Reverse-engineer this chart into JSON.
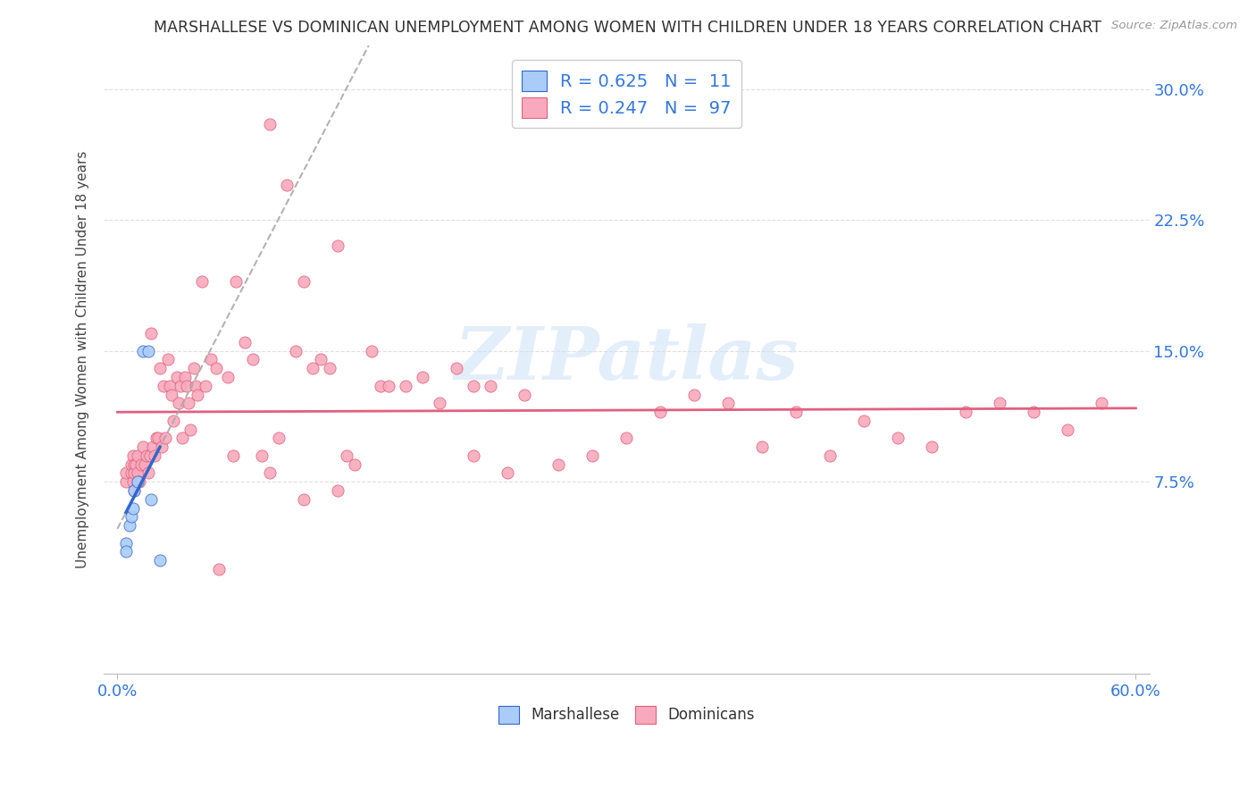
{
  "title": "MARSHALLESE VS DOMINICAN UNEMPLOYMENT AMONG WOMEN WITH CHILDREN UNDER 18 YEARS CORRELATION CHART",
  "source": "Source: ZipAtlas.com",
  "ylabel": "Unemployment Among Women with Children Under 18 years",
  "background_color": "#ffffff",
  "grid_color": "#e0e0e0",
  "marshallese_color": "#aaccf8",
  "dominican_color": "#f8aabc",
  "marshallese_line_color": "#3366cc",
  "dominican_line_color": "#e06080",
  "legend_color": "#3377dd",
  "marshallese_R": 0.625,
  "marshallese_N": 11,
  "dominican_R": 0.247,
  "dominican_N": 97,
  "xlim": [
    -0.008,
    0.608
  ],
  "ylim": [
    -0.035,
    0.325
  ],
  "ytick_positions": [
    0.075,
    0.15,
    0.225,
    0.3
  ],
  "ytick_labels": [
    "7.5%",
    "15.0%",
    "22.5%",
    "30.0%"
  ],
  "marshallese_x": [
    0.005,
    0.005,
    0.007,
    0.008,
    0.009,
    0.01,
    0.012,
    0.015,
    0.018,
    0.02,
    0.025
  ],
  "marshallese_y": [
    0.04,
    0.035,
    0.05,
    0.055,
    0.06,
    0.07,
    0.075,
    0.15,
    0.15,
    0.065,
    0.03
  ],
  "dominican_x": [
    0.005,
    0.005,
    0.008,
    0.008,
    0.009,
    0.009,
    0.01,
    0.01,
    0.01,
    0.011,
    0.012,
    0.012,
    0.013,
    0.014,
    0.015,
    0.016,
    0.017,
    0.018,
    0.019,
    0.02,
    0.021,
    0.022,
    0.023,
    0.024,
    0.025,
    0.026,
    0.027,
    0.028,
    0.03,
    0.031,
    0.032,
    0.033,
    0.035,
    0.036,
    0.037,
    0.038,
    0.04,
    0.041,
    0.042,
    0.043,
    0.045,
    0.046,
    0.047,
    0.05,
    0.052,
    0.055,
    0.058,
    0.06,
    0.065,
    0.068,
    0.07,
    0.075,
    0.08,
    0.085,
    0.09,
    0.095,
    0.1,
    0.105,
    0.11,
    0.115,
    0.12,
    0.125,
    0.13,
    0.135,
    0.14,
    0.15,
    0.155,
    0.16,
    0.17,
    0.18,
    0.19,
    0.2,
    0.21,
    0.22,
    0.23,
    0.24,
    0.26,
    0.28,
    0.3,
    0.32,
    0.34,
    0.36,
    0.38,
    0.4,
    0.42,
    0.44,
    0.46,
    0.48,
    0.5,
    0.52,
    0.54,
    0.56,
    0.58,
    0.21,
    0.09,
    0.11,
    0.13
  ],
  "dominican_y": [
    0.075,
    0.08,
    0.08,
    0.085,
    0.09,
    0.075,
    0.085,
    0.08,
    0.07,
    0.085,
    0.09,
    0.08,
    0.075,
    0.085,
    0.095,
    0.085,
    0.09,
    0.08,
    0.09,
    0.16,
    0.095,
    0.09,
    0.1,
    0.1,
    0.14,
    0.095,
    0.13,
    0.1,
    0.145,
    0.13,
    0.125,
    0.11,
    0.135,
    0.12,
    0.13,
    0.1,
    0.135,
    0.13,
    0.12,
    0.105,
    0.14,
    0.13,
    0.125,
    0.19,
    0.13,
    0.145,
    0.14,
    0.025,
    0.135,
    0.09,
    0.19,
    0.155,
    0.145,
    0.09,
    0.28,
    0.1,
    0.245,
    0.15,
    0.19,
    0.14,
    0.145,
    0.14,
    0.21,
    0.09,
    0.085,
    0.15,
    0.13,
    0.13,
    0.13,
    0.135,
    0.12,
    0.14,
    0.09,
    0.13,
    0.08,
    0.125,
    0.085,
    0.09,
    0.1,
    0.115,
    0.125,
    0.12,
    0.095,
    0.115,
    0.09,
    0.11,
    0.1,
    0.095,
    0.115,
    0.12,
    0.115,
    0.105,
    0.12,
    0.13,
    0.08,
    0.065,
    0.07
  ]
}
